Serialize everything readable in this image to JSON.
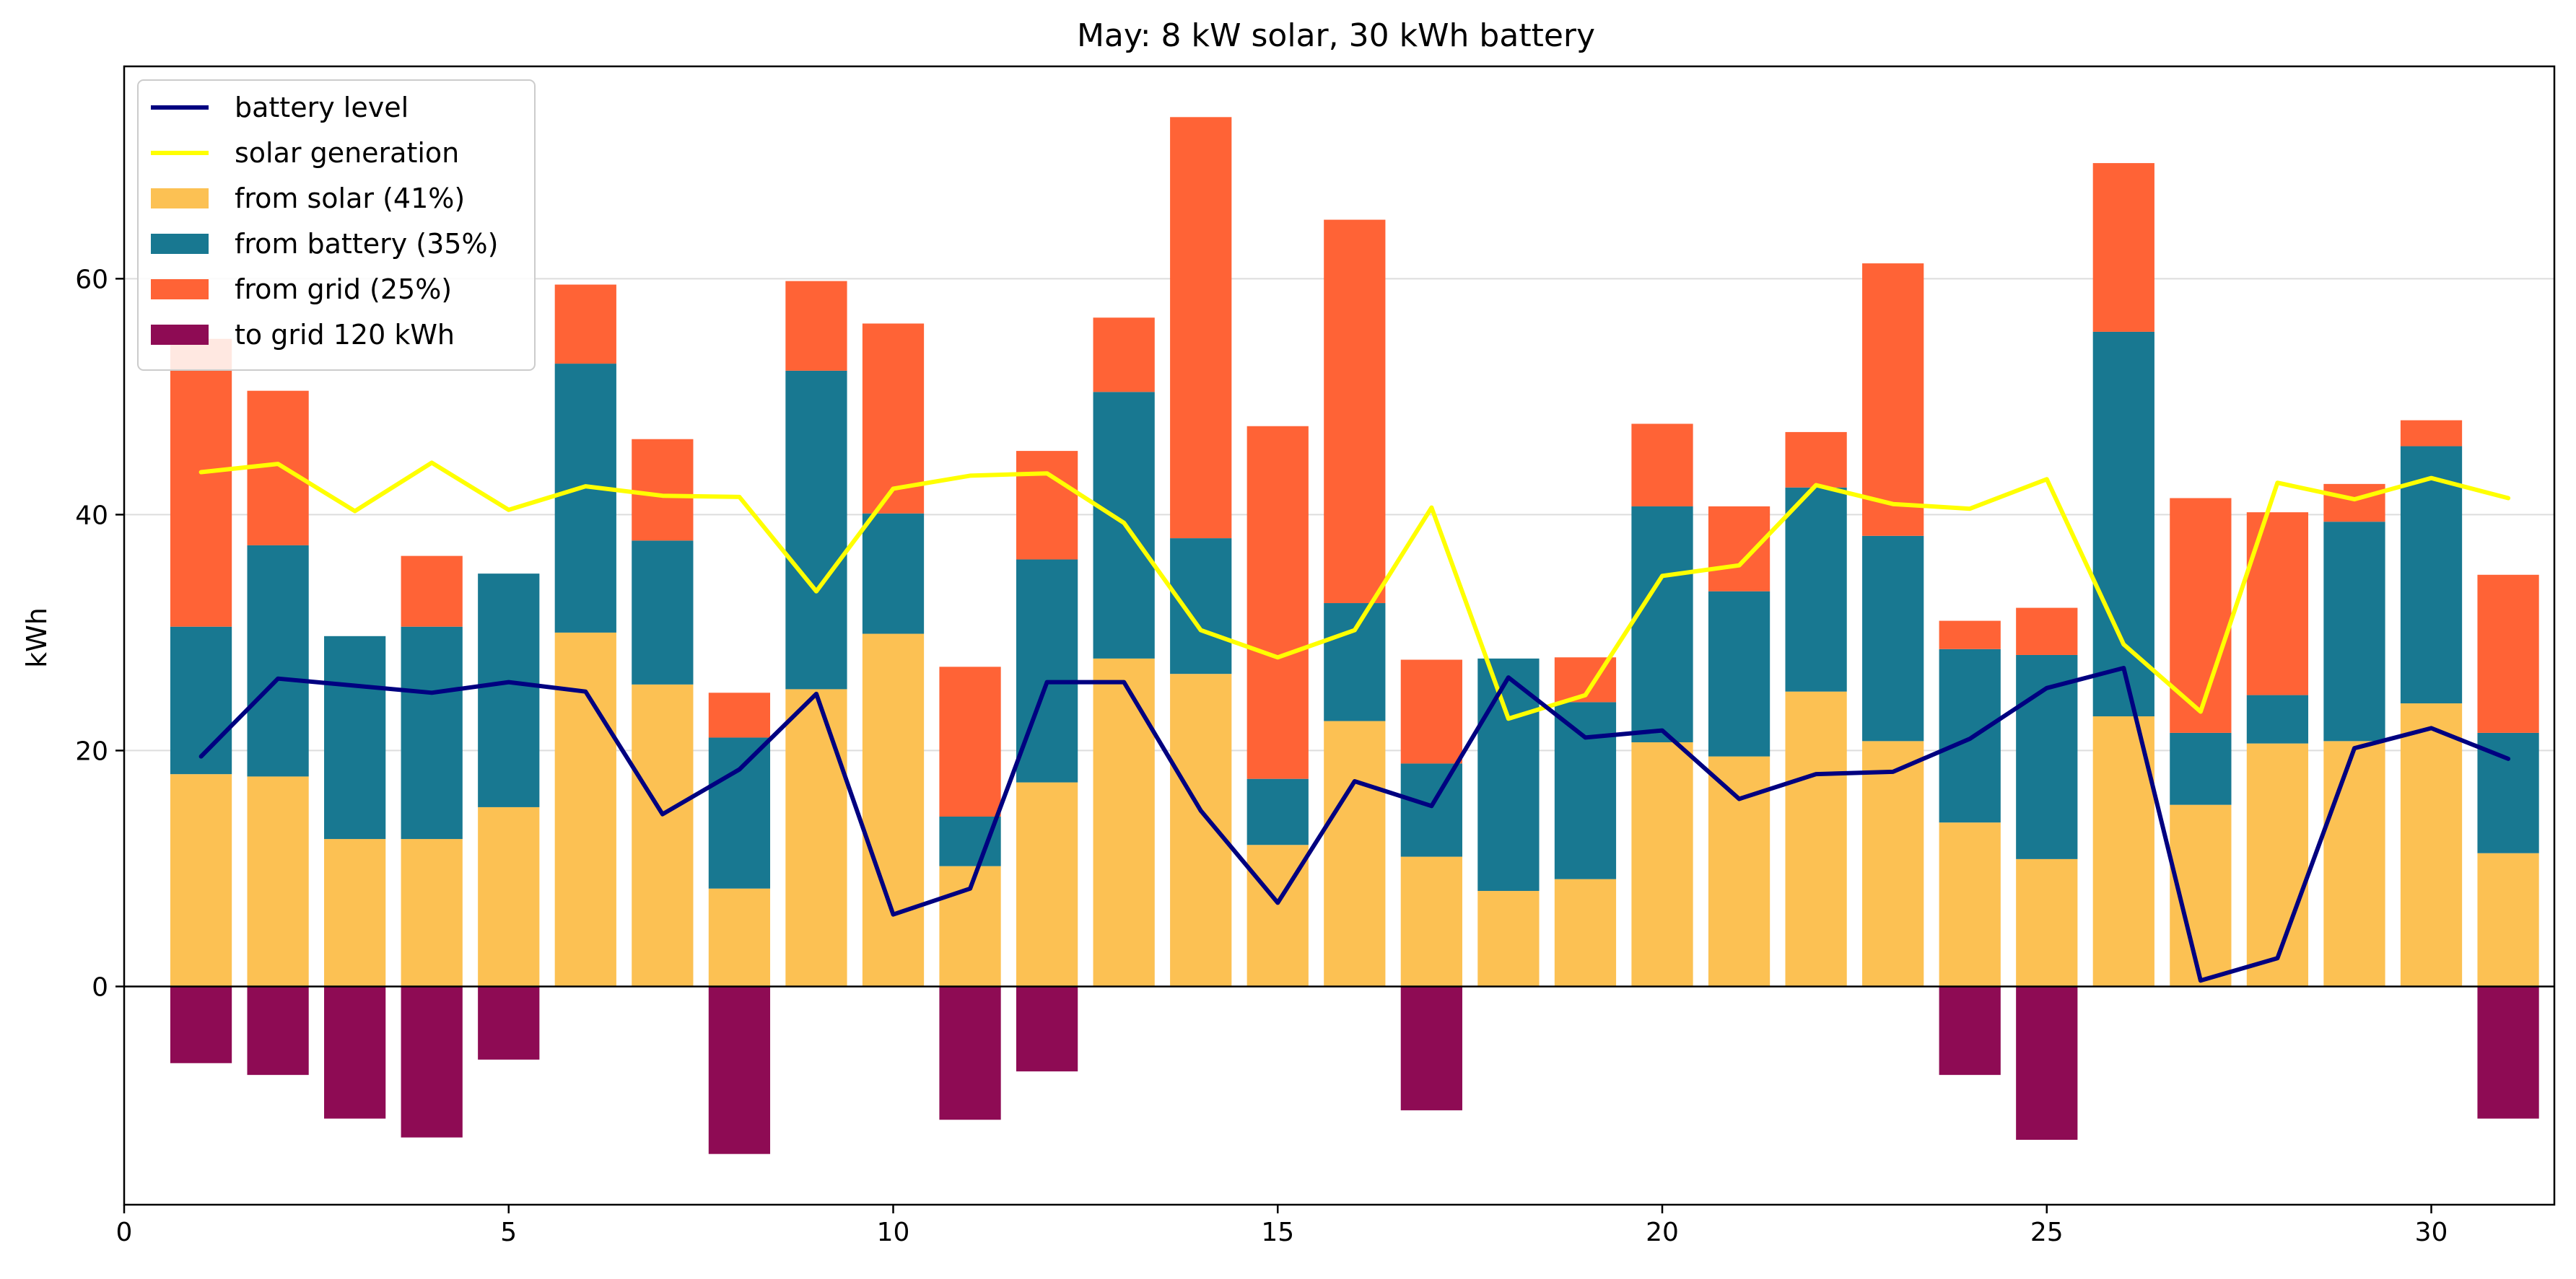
{
  "chart_data": {
    "type": "bar",
    "title": "May: 8 kW solar, 30 kWh battery",
    "xlabel": "",
    "ylabel": "kWh",
    "xlim": [
      0,
      31.6
    ],
    "ylim": [
      -18.5,
      78
    ],
    "x_ticks": [
      0,
      5,
      10,
      15,
      20,
      25,
      30
    ],
    "y_ticks": [
      0,
      20,
      40,
      60
    ],
    "grid": "horizontal",
    "legend_position": "top-left",
    "x": [
      1,
      2,
      3,
      4,
      5,
      6,
      7,
      8,
      9,
      10,
      11,
      12,
      13,
      14,
      15,
      16,
      17,
      18,
      19,
      20,
      21,
      22,
      23,
      24,
      25,
      26,
      27,
      28,
      29,
      30,
      31
    ],
    "series": [
      {
        "name": "from solar (41%)",
        "kind": "stacked-bar",
        "color": "#fcc153",
        "values": [
          18.0,
          17.8,
          12.5,
          12.5,
          15.2,
          30.0,
          25.6,
          8.3,
          25.2,
          29.9,
          10.2,
          17.3,
          27.8,
          26.5,
          12.0,
          22.5,
          11.0,
          8.1,
          9.1,
          20.7,
          19.5,
          25.0,
          20.8,
          13.9,
          10.8,
          22.9,
          15.4,
          20.6,
          20.8,
          24.0,
          11.3
        ]
      },
      {
        "name": "from battery (35%)",
        "kind": "stacked-bar",
        "color": "#187891",
        "values": [
          12.5,
          19.6,
          17.2,
          18.0,
          19.8,
          22.8,
          12.2,
          12.8,
          27.0,
          10.2,
          4.2,
          18.9,
          22.6,
          11.5,
          5.6,
          10.0,
          7.9,
          19.7,
          15.0,
          20.0,
          14.0,
          17.3,
          17.4,
          14.7,
          17.3,
          32.6,
          6.1,
          4.1,
          18.6,
          21.8,
          10.2
        ]
      },
      {
        "name": "from grid (25%)",
        "kind": "stacked-bar",
        "color": "#ff6336",
        "values": [
          24.4,
          13.1,
          0.0,
          6.0,
          0.0,
          6.7,
          8.6,
          3.8,
          7.6,
          16.1,
          12.7,
          9.2,
          6.3,
          35.7,
          29.9,
          32.5,
          8.8,
          0.0,
          3.8,
          7.0,
          7.2,
          4.7,
          23.1,
          2.4,
          4.0,
          14.3,
          19.9,
          15.5,
          3.2,
          2.2,
          13.4
        ]
      },
      {
        "name": "to grid 120 kWh",
        "kind": "bar",
        "color": "#8e0b54",
        "values": [
          -6.5,
          -7.5,
          -11.2,
          -12.8,
          -6.2,
          0,
          0,
          -14.2,
          0,
          0,
          -11.3,
          -7.2,
          0,
          0,
          0,
          0,
          -10.5,
          0,
          0,
          0,
          0,
          0,
          0,
          -7.5,
          -13.0,
          0,
          0,
          0,
          0,
          0,
          -11.2
        ]
      },
      {
        "name": "battery level",
        "kind": "line",
        "color": "#000080",
        "values": [
          19.5,
          26.1,
          25.5,
          24.9,
          25.8,
          25.0,
          14.6,
          18.4,
          24.8,
          6.1,
          8.3,
          25.8,
          25.8,
          14.9,
          7.1,
          17.4,
          15.3,
          26.2,
          21.1,
          21.7,
          15.9,
          18.0,
          18.2,
          21.0,
          25.3,
          27.0,
          0.5,
          2.4,
          20.2,
          21.9,
          19.3
        ]
      },
      {
        "name": "solar generation",
        "kind": "line",
        "color": "#ffff00",
        "values": [
          43.6,
          44.3,
          40.3,
          44.4,
          40.4,
          42.4,
          41.6,
          41.5,
          33.5,
          42.2,
          43.3,
          43.5,
          39.3,
          30.2,
          27.9,
          30.2,
          40.6,
          22.7,
          24.7,
          34.8,
          35.7,
          42.5,
          40.9,
          40.5,
          43.0,
          29.0,
          23.3,
          42.7,
          41.3,
          43.1,
          41.4
        ]
      }
    ],
    "legend": [
      {
        "label": "battery level",
        "kind": "line",
        "color": "#000080"
      },
      {
        "label": "solar generation",
        "kind": "line",
        "color": "#ffff00"
      },
      {
        "label": "from solar (41%)",
        "kind": "patch",
        "color": "#fcc153"
      },
      {
        "label": "from battery (35%)",
        "kind": "patch",
        "color": "#187891"
      },
      {
        "label": "from grid (25%)",
        "kind": "patch",
        "color": "#ff6336"
      },
      {
        "label": "to grid 120 kWh",
        "kind": "patch",
        "color": "#8e0b54"
      }
    ]
  }
}
